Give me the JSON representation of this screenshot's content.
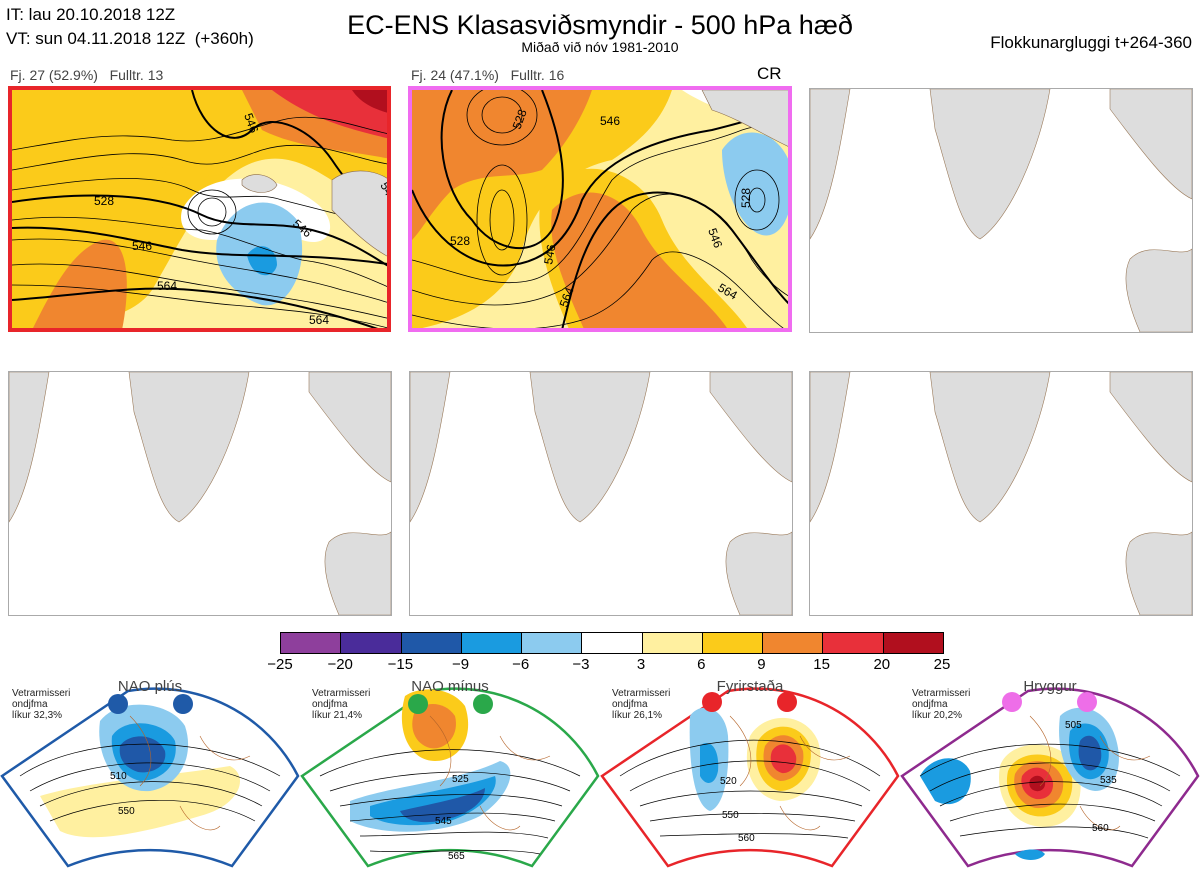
{
  "header": {
    "it_line": "IT: lau 20.10.2018 12Z",
    "vt_line": "VT: sun 04.11.2018 12Z  (+360h)",
    "title": "EC-ENS Klasasviðsmyndir - 500 hPa hæð",
    "subtitle": "Miðað við nóv 1981-2010",
    "window": "Flokkunargluggi t+264-360"
  },
  "clusters": [
    {
      "label": "Fj. 27 (52.9%)   Fulltr. 13",
      "frame_color": "#e8252a",
      "tag": "",
      "contours": [
        "528",
        "546",
        "546",
        "564",
        "564",
        "546",
        "546"
      ]
    },
    {
      "label": "Fj. 24 (47.1%)   Fulltr. 16",
      "frame_color": "#f06cf0",
      "tag": "CR",
      "contours": [
        "528",
        "546",
        "528",
        "546",
        "564",
        "564",
        "546",
        "528"
      ]
    }
  ],
  "colorbar": {
    "colors": [
      "#8e3f9c",
      "#4a2c9a",
      "#1f58a8",
      "#1a9be0",
      "#8ccbef",
      "#ffffff",
      "#fff0a0",
      "#fbcb1a",
      "#f0862f",
      "#e8303a",
      "#b10f1e"
    ],
    "ticks": [
      "−25",
      "−20",
      "−15",
      "−9",
      "−6",
      "−3",
      "3",
      "6",
      "9",
      "15",
      "20",
      "25"
    ]
  },
  "regimes": [
    {
      "name": "NAO plús",
      "season": "Vetrarmisseri",
      "kind": "ondjfma",
      "prob": "líkur 32,3%",
      "edge": "#1f5aa8",
      "dot": "#1f5aa8",
      "labels": [
        "510",
        "550"
      ]
    },
    {
      "name": "NAO mínus",
      "season": "Vetrarmisseri",
      "kind": "ondjfma",
      "prob": "líkur 21,4%",
      "edge": "#2aa84a",
      "dot": "#2aa84a",
      "labels": [
        "525",
        "545",
        "565"
      ]
    },
    {
      "name": "Fyrirstaða",
      "season": "Vetrarmisseri",
      "kind": "ondjfma",
      "prob": "líkur 26,1%",
      "edge": "#e8252a",
      "dot": "#e8252a",
      "labels": [
        "520",
        "550",
        "560"
      ]
    },
    {
      "name": "Hryggur",
      "season": "Vetrarmisseri",
      "kind": "ondjfma",
      "prob": "líkur 20,2%",
      "edge": "#8e2a8e",
      "dot": "#ee6ee8",
      "labels": [
        "505",
        "535",
        "560"
      ]
    }
  ]
}
